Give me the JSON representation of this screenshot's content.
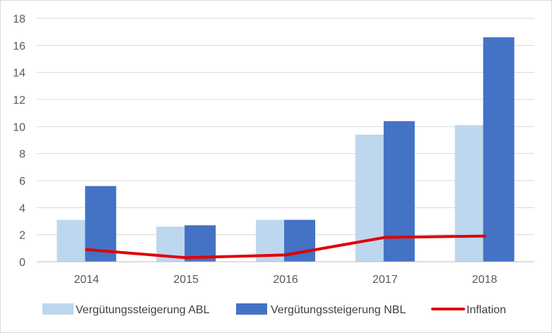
{
  "chart_data": {
    "type": "bar",
    "title": "",
    "xlabel": "",
    "ylabel": "",
    "categories": [
      "2014",
      "2015",
      "2016",
      "2017",
      "2018"
    ],
    "ylim": [
      0,
      18
    ],
    "yticks": [
      0,
      2,
      4,
      6,
      8,
      10,
      12,
      14,
      16,
      18
    ],
    "grid": true,
    "legend_position": "bottom",
    "series": [
      {
        "name": "Vergütungssteigerung ABL",
        "type": "bar",
        "color": "#bdd7ee",
        "values": [
          3.1,
          2.6,
          3.1,
          9.4,
          10.1
        ]
      },
      {
        "name": "Vergütungssteigerung NBL",
        "type": "bar",
        "color": "#4472c4",
        "values": [
          5.6,
          2.7,
          3.1,
          10.4,
          16.6
        ]
      },
      {
        "name": "Inflation",
        "type": "line",
        "color": "#e00000",
        "values": [
          0.9,
          0.3,
          0.5,
          1.8,
          1.9
        ]
      }
    ]
  }
}
